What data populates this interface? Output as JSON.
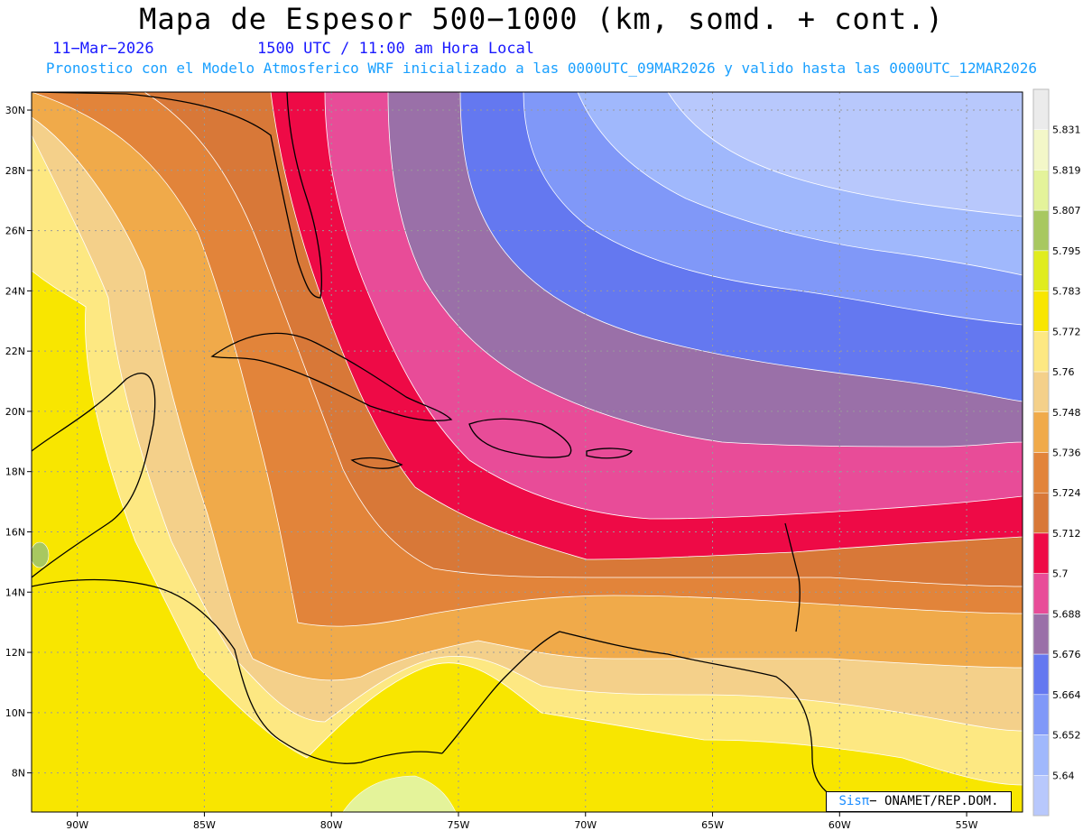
{
  "header": {
    "title": "Mapa de Espesor 500−1000 (km, somd. + cont.)",
    "date": "11−Mar−2026",
    "time": "1500 UTC / 11:00 am Hora Local",
    "forecast": "Pronostico con el Modelo Atmosferico WRF inicializado a las 0000UTC_09MAR2026 y valido hasta las  0000UTC_12MAR2026"
  },
  "map": {
    "lat_labels": [
      "30N",
      "28N",
      "26N",
      "24N",
      "22N",
      "20N",
      "18N",
      "16N",
      "14N",
      "12N",
      "10N",
      "8N"
    ],
    "lon_labels": [
      "90W",
      "85W",
      "80W",
      "75W",
      "70W",
      "65W",
      "60W",
      "55W"
    ],
    "lat_range": [
      6.7,
      30.6
    ],
    "lon_range": [
      -91.8,
      -52.8
    ],
    "grid": true
  },
  "legend": {
    "levels": [
      "5.831",
      "5.819",
      "5.807",
      "5.795",
      "5.783",
      "5.772",
      "5.76",
      "5.748",
      "5.736",
      "5.724",
      "5.712",
      "5.7",
      "5.688",
      "5.676",
      "5.664",
      "5.652",
      "5.64"
    ],
    "colors": [
      "#ebebeb",
      "#f3f7c8",
      "#e4f39a",
      "#a8c860",
      "#e0ec1e",
      "#f8e600",
      "#fde882",
      "#f4d08a",
      "#f0aa4a",
      "#e2843a",
      "#d87838",
      "#ee0a46",
      "#e84c98",
      "#9a70a8",
      "#6478f0",
      "#8098f8",
      "#a0b8fc",
      "#b8c8fc"
    ]
  },
  "credit": {
    "sis": "Sisπ",
    "text": "− ONAMET/REP.DOM."
  }
}
